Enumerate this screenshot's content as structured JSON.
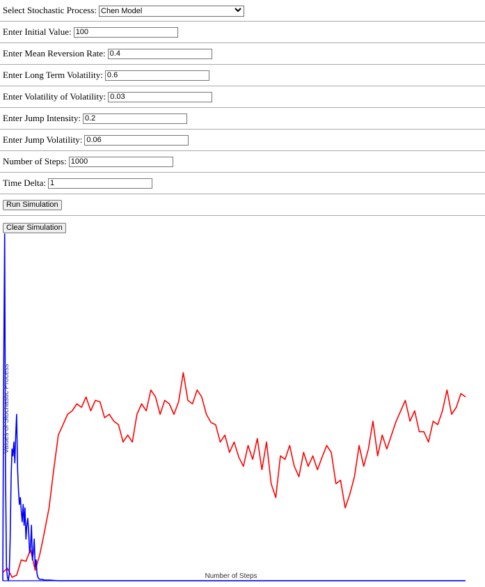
{
  "form": {
    "process_label": "Select Stochastic Process:",
    "process_selected": "Chen Model",
    "fields": [
      {
        "label": "Enter Initial Value:",
        "value": "100"
      },
      {
        "label": "Enter Mean Reversion Rate:",
        "value": "0.4"
      },
      {
        "label": "Enter Long Term Volatility:",
        "value": "0.6"
      },
      {
        "label": "Enter Volatility of Volatility:",
        "value": "0.03"
      },
      {
        "label": "Enter Jump Intensity:",
        "value": "0.2"
      },
      {
        "label": "Enter Jump Volatility:",
        "value": "0.06"
      },
      {
        "label": "Number of Steps:",
        "value": "1000"
      },
      {
        "label": "Time Delta:",
        "value": "1"
      }
    ],
    "run_label": "Run Simulation",
    "clear_label": "Clear Simulation"
  },
  "chart_data": {
    "type": "line",
    "xlabel": "Number of Steps",
    "ylabel": "Values of Stochastic Process",
    "xlim": [
      0,
      1000
    ],
    "colors": {
      "red_series": "#ff0000",
      "blue_series": "#0000ff"
    },
    "series": [
      {
        "color": "#ff0000",
        "x": [
          0,
          10,
          20,
          30,
          40,
          50,
          60,
          70,
          80,
          90,
          100,
          110,
          120,
          130,
          140,
          150,
          160,
          170,
          180,
          190,
          200,
          210,
          220,
          230,
          240,
          250,
          260,
          270,
          280,
          290,
          300,
          310,
          320,
          330,
          340,
          350,
          360,
          370,
          380,
          390,
          400,
          410,
          420,
          430,
          440,
          450,
          460,
          470,
          480,
          490,
          500,
          510,
          520,
          530,
          540,
          550,
          560,
          570,
          580,
          590,
          600,
          610,
          620,
          630,
          640,
          650,
          660,
          670,
          680,
          690,
          700,
          710,
          720,
          730,
          740,
          750,
          760,
          770,
          780,
          790,
          800,
          810,
          820,
          830,
          840,
          850,
          860,
          870,
          880,
          890,
          900,
          910,
          920,
          930,
          940,
          950,
          960,
          970,
          980,
          990,
          1000
        ],
        "y": [
          12,
          18,
          5,
          8,
          30,
          28,
          45,
          15,
          38,
          70,
          105,
          160,
          210,
          225,
          240,
          245,
          255,
          250,
          265,
          245,
          260,
          258,
          235,
          240,
          230,
          225,
          200,
          210,
          200,
          240,
          255,
          245,
          275,
          265,
          240,
          260,
          255,
          240,
          258,
          300,
          260,
          255,
          275,
          265,
          240,
          228,
          225,
          200,
          210,
          185,
          200,
          178,
          165,
          195,
          175,
          205,
          160,
          200,
          140,
          120,
          180,
          175,
          195,
          165,
          150,
          185,
          165,
          180,
          160,
          178,
          195,
          185,
          140,
          145,
          105,
          125,
          150,
          195,
          165,
          190,
          230,
          180,
          210,
          190,
          210,
          230,
          245,
          260,
          230,
          245,
          215,
          215,
          200,
          230,
          225,
          245,
          275,
          240,
          250,
          270,
          265
        ]
      },
      {
        "color": "#0000ff",
        "x": [
          0,
          2,
          4,
          6,
          8,
          10,
          12,
          14,
          16,
          18,
          20,
          22,
          24,
          26,
          28,
          30,
          32,
          34,
          36,
          38,
          40,
          42,
          44,
          46,
          48,
          50,
          52,
          54,
          56,
          58,
          60,
          62,
          64,
          66,
          68,
          70,
          72,
          74,
          76,
          78,
          80,
          85,
          90,
          100,
          120,
          200,
          400,
          600,
          800,
          1000
        ],
        "y": [
          0,
          300,
          500,
          150,
          20,
          5,
          0,
          10,
          60,
          150,
          190,
          180,
          200,
          170,
          210,
          240,
          160,
          130,
          110,
          120,
          100,
          85,
          110,
          80,
          105,
          60,
          80,
          90,
          70,
          40,
          50,
          80,
          30,
          40,
          60,
          20,
          30,
          10,
          5,
          3,
          2,
          2,
          1,
          1,
          0,
          0,
          0,
          0,
          0,
          0
        ]
      }
    ]
  }
}
